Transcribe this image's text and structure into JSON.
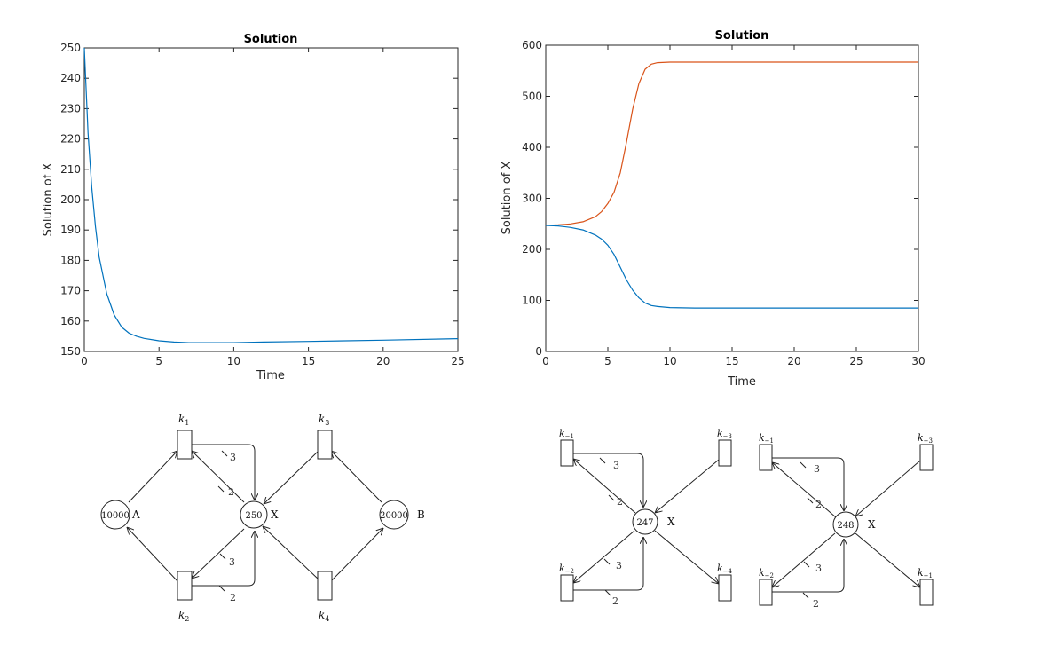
{
  "chart_data": [
    {
      "type": "line",
      "title": "Solution",
      "xlabel": "Time",
      "ylabel": "Solution of X",
      "xlim": [
        0,
        25
      ],
      "ylim": [
        150,
        250
      ],
      "xticks": [
        0,
        5,
        10,
        15,
        20,
        25
      ],
      "yticks": [
        150,
        160,
        170,
        180,
        190,
        200,
        210,
        220,
        230,
        240,
        250
      ],
      "grid": false,
      "series": [
        {
          "color": "#0072bd",
          "x": [
            0,
            0.25,
            0.5,
            0.75,
            1,
            1.5,
            2,
            2.5,
            3,
            3.5,
            4,
            5,
            6,
            7,
            8,
            9,
            10,
            12,
            15,
            20,
            25
          ],
          "y": [
            250,
            222,
            204,
            191,
            181,
            169,
            162,
            158,
            156,
            155,
            154.3,
            153.5,
            153.1,
            152.9,
            152.9,
            152.9,
            152.9,
            153.1,
            153.3,
            153.7,
            154.2
          ]
        }
      ]
    },
    {
      "type": "line",
      "title": "Solution",
      "xlabel": "Time",
      "ylabel": "Solution of X",
      "xlim": [
        0,
        30
      ],
      "ylim": [
        0,
        600
      ],
      "xticks": [
        0,
        5,
        10,
        15,
        20,
        25,
        30
      ],
      "yticks": [
        0,
        100,
        200,
        300,
        400,
        500,
        600
      ],
      "grid": false,
      "series": [
        {
          "color": "#d95319",
          "x": [
            0,
            1,
            2,
            3,
            4,
            4.5,
            5,
            5.5,
            6,
            6.5,
            7,
            7.5,
            8,
            8.5,
            9,
            10,
            12,
            15,
            20,
            25,
            30
          ],
          "y": [
            247,
            248,
            250,
            254,
            264,
            274,
            290,
            312,
            350,
            410,
            475,
            525,
            553,
            563,
            566,
            567,
            567,
            567,
            567,
            567,
            567
          ]
        },
        {
          "color": "#0072bd",
          "x": [
            0,
            1,
            2,
            3,
            4,
            4.5,
            5,
            5.5,
            6,
            6.5,
            7,
            7.5,
            8,
            8.5,
            9,
            10,
            12,
            15,
            20,
            25,
            30
          ],
          "y": [
            247,
            246,
            243,
            238,
            228,
            220,
            208,
            190,
            165,
            140,
            120,
            105,
            95,
            90,
            88,
            86,
            85,
            85,
            85,
            85,
            85
          ]
        }
      ]
    }
  ],
  "networks": {
    "left": {
      "places": [
        {
          "id": "A",
          "value": "10000",
          "label": "A"
        },
        {
          "id": "X",
          "value": "250",
          "label": "X"
        },
        {
          "id": "B",
          "value": "20000",
          "label": "B"
        }
      ],
      "transitions": [
        {
          "id": "t1",
          "label": "k1",
          "base": "k",
          "sub": "1"
        },
        {
          "id": "t2",
          "label": "k2",
          "base": "k",
          "sub": "2"
        },
        {
          "id": "t3",
          "label": "k3",
          "base": "k",
          "sub": "3"
        },
        {
          "id": "t4",
          "label": "k4",
          "base": "k",
          "sub": "4"
        }
      ],
      "weights": [
        "3",
        "2",
        "3",
        "2"
      ]
    },
    "middle": {
      "places": [
        {
          "id": "X",
          "value": "247",
          "label": "X"
        }
      ],
      "transitions": [
        {
          "id": "ta",
          "base": "k",
          "sub": "−1"
        },
        {
          "id": "tb",
          "base": "k",
          "sub": "−3"
        },
        {
          "id": "tc",
          "base": "k",
          "sub": "−2"
        },
        {
          "id": "td",
          "base": "k",
          "sub": "−4"
        }
      ],
      "weights": [
        "3",
        "2",
        "3",
        "2"
      ]
    },
    "right": {
      "places": [
        {
          "id": "X",
          "value": "248",
          "label": "X"
        }
      ],
      "transitions": [
        {
          "id": "ta",
          "base": "k",
          "sub": "−1"
        },
        {
          "id": "tb",
          "base": "k",
          "sub": "−3"
        },
        {
          "id": "tc",
          "base": "k",
          "sub": "−2"
        },
        {
          "id": "td",
          "base": "k",
          "sub": "−1"
        }
      ],
      "weights": [
        "3",
        "2",
        "3",
        "2"
      ]
    }
  }
}
